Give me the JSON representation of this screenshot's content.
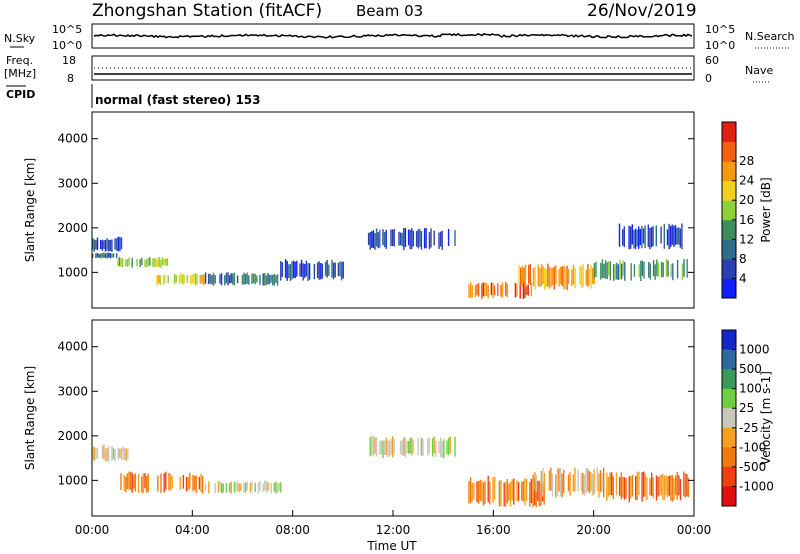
{
  "title": {
    "station": "Zhongshan Station (fitACF)",
    "beam": "Beam 03",
    "date": "26/Nov/2019"
  },
  "top_panels": {
    "nsky": {
      "label": "N.Sky",
      "left_ticks": [
        "10^5",
        "10^0"
      ],
      "right_ticks": [
        "10^5",
        "10^0"
      ],
      "right_label": "N.Search"
    },
    "freq": {
      "label_line1": "Freq.",
      "label_line2": "[MHz]",
      "left_ticks": [
        "18",
        "8"
      ],
      "right_ticks": [
        "60",
        "0"
      ],
      "right_label": "Nave"
    },
    "cpid": {
      "label": "CPID",
      "mode_text": "normal (fast stereo) 153"
    }
  },
  "chart_data": [
    {
      "type": "heatmap",
      "name": "power-panel",
      "ylabel": "Slant Range [km]",
      "xlabel": "",
      "ylim": [
        200,
        4600
      ],
      "yticks": [
        "1000",
        "2000",
        "3000",
        "4000"
      ],
      "xlim": [
        0,
        24
      ],
      "colorbar": {
        "label": "Power [dB]",
        "ticks": [
          "4",
          "8",
          "12",
          "16",
          "20",
          "24",
          "28"
        ],
        "colors": [
          "#1020ff",
          "#2a3fb0",
          "#2e6e8a",
          "#3c8f5a",
          "#8fd03a",
          "#f0d020",
          "#f59a10",
          "#f06010",
          "#e02010"
        ]
      },
      "echo_bands": [
        {
          "t0": 0.0,
          "t1": 1.2,
          "r0": 1450,
          "r1": 1800,
          "level": 1
        },
        {
          "t0": 0.0,
          "t1": 1.0,
          "r0": 1300,
          "r1": 1450,
          "level": 2
        },
        {
          "t0": 1.0,
          "t1": 3.0,
          "r0": 1100,
          "r1": 1350,
          "level": 4
        },
        {
          "t0": 2.5,
          "t1": 4.5,
          "r0": 700,
          "r1": 1000,
          "level": 5
        },
        {
          "t0": 4.5,
          "t1": 7.5,
          "r0": 700,
          "r1": 1000,
          "level": 2
        },
        {
          "t0": 7.5,
          "t1": 10.0,
          "r0": 800,
          "r1": 1300,
          "level": 1
        },
        {
          "t0": 11.0,
          "t1": 14.5,
          "r0": 1500,
          "r1": 2000,
          "level": 1
        },
        {
          "t0": 15.0,
          "t1": 17.5,
          "r0": 400,
          "r1": 800,
          "level": 7
        },
        {
          "t0": 17.0,
          "t1": 20.0,
          "r0": 600,
          "r1": 1200,
          "level": 6
        },
        {
          "t0": 20.0,
          "t1": 23.8,
          "r0": 800,
          "r1": 1300,
          "level": 3
        },
        {
          "t0": 21.0,
          "t1": 23.5,
          "r0": 1500,
          "r1": 2100,
          "level": 1
        }
      ]
    },
    {
      "type": "heatmap",
      "name": "velocity-panel",
      "ylabel": "Slant Range [km]",
      "xlabel": "Time UT",
      "ylim": [
        200,
        4600
      ],
      "yticks": [
        "1000",
        "2000",
        "3000",
        "4000"
      ],
      "xlim": [
        0,
        24
      ],
      "xticks": [
        "00:00",
        "04:00",
        "08:00",
        "12:00",
        "16:00",
        "20:00",
        "00:00"
      ],
      "colorbar": {
        "label": "Velocity [m s-1]",
        "ticks": [
          "1000",
          "500",
          "100",
          "25",
          "-25",
          "-100",
          "-500",
          "-1000"
        ],
        "colors": [
          "#1428c8",
          "#2e6a9e",
          "#3a9a5a",
          "#6cd040",
          "#c8c8bc",
          "#f5a020",
          "#f07a10",
          "#f04010",
          "#e01010"
        ]
      },
      "echo_bands": [
        {
          "t0": 0.0,
          "t1": 1.5,
          "r0": 1400,
          "r1": 1800,
          "level": 4
        },
        {
          "t0": 1.0,
          "t1": 4.5,
          "r0": 700,
          "r1": 1200,
          "level": 6
        },
        {
          "t0": 4.5,
          "t1": 7.5,
          "r0": 700,
          "r1": 1000,
          "level": 4
        },
        {
          "t0": 11.0,
          "t1": 14.5,
          "r0": 1500,
          "r1": 2000,
          "level": 4
        },
        {
          "t0": 15.0,
          "t1": 18.0,
          "r0": 400,
          "r1": 1100,
          "level": 6
        },
        {
          "t0": 17.5,
          "t1": 20.5,
          "r0": 600,
          "r1": 1300,
          "level": 5
        },
        {
          "t0": 20.5,
          "t1": 23.8,
          "r0": 500,
          "r1": 1200,
          "level": 6
        }
      ]
    }
  ],
  "colors": {
    "axis": "#000000"
  }
}
